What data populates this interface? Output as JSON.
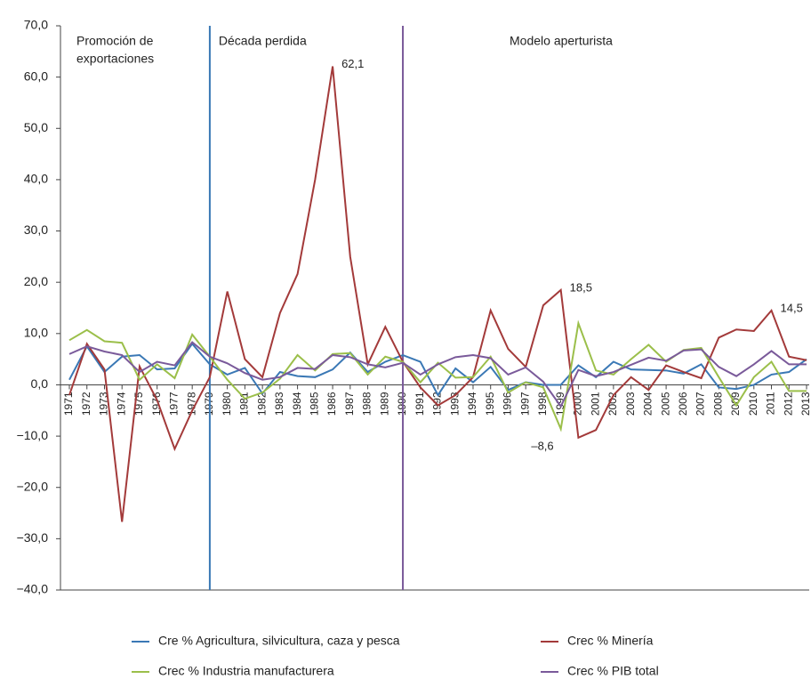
{
  "chart_data": {
    "type": "line",
    "categories": [
      "1971",
      "1972",
      "1973",
      "1974",
      "1975",
      "1976",
      "1977",
      "1978",
      "1979",
      "1980",
      "1981",
      "1982",
      "1983",
      "1984",
      "1985",
      "1986",
      "1987",
      "1988",
      "1989",
      "1990",
      "1991",
      "1992",
      "1993",
      "1994",
      "1995",
      "1996",
      "1997",
      "1998",
      "1999",
      "2000",
      "2001",
      "2002",
      "2003",
      "2004",
      "2005",
      "2006",
      "2007",
      "2008",
      "2009",
      "2010",
      "2011",
      "2012",
      "2013"
    ],
    "series": [
      {
        "name": "Cre % Agricultura, silvicultura, caza y pesca",
        "color": "#3a78b5",
        "values": [
          1,
          7.5,
          2.5,
          5.5,
          5.8,
          3,
          3.2,
          8,
          4,
          2,
          3.3,
          -1.7,
          2.5,
          1.7,
          1.5,
          3,
          6.3,
          2.5,
          4.5,
          5.8,
          4.5,
          -2,
          3.2,
          0.5,
          3.5,
          -1,
          0.5,
          0,
          0,
          3.8,
          1.5,
          4.5,
          3,
          2.9,
          2.8,
          2.2,
          4,
          -0.5,
          -0.8,
          0,
          2,
          2.5,
          5
        ]
      },
      {
        "name": "Crec % Minería",
        "color": "#a33a3a",
        "values": [
          -2,
          8,
          3,
          -26.7,
          3.6,
          -3,
          -12.5,
          -5,
          1.5,
          18.2,
          5,
          1.5,
          14,
          21.6,
          40,
          62.1,
          25,
          4,
          11.3,
          4.5,
          -0.5,
          -4,
          -2,
          1.5,
          14.5,
          7,
          3.5,
          15.5,
          18.5,
          -10.3,
          -8.8,
          -2,
          1.5,
          -1,
          3.8,
          2.5,
          1.3,
          9.2,
          10.8,
          10.5,
          14.5,
          5.5,
          4.8
        ],
        "value_labels": [
          null,
          null,
          null,
          null,
          null,
          null,
          null,
          null,
          null,
          null,
          null,
          null,
          null,
          null,
          null,
          "62,1",
          null,
          null,
          null,
          null,
          null,
          null,
          null,
          null,
          null,
          null,
          null,
          null,
          "18,5",
          null,
          null,
          null,
          null,
          null,
          null,
          null,
          null,
          null,
          null,
          null,
          "14,5",
          null,
          null
        ]
      },
      {
        "name": "Crec % Industria manufacturera",
        "color": "#9bbf4a",
        "values": [
          8.7,
          10.7,
          8.5,
          8.2,
          1,
          4,
          1.3,
          9.8,
          5.5,
          1,
          -2.7,
          -1.5,
          1.2,
          5.8,
          2.8,
          6,
          6.2,
          2,
          5.5,
          4.5,
          0.5,
          4.3,
          1.4,
          1.5,
          5.5,
          -1.5,
          0.5,
          -0.5,
          -8.6,
          12,
          2.8,
          2,
          5,
          7.8,
          4.5,
          6.8,
          7.2,
          1.5,
          -4,
          1.5,
          4.5,
          -1.2,
          -1.2
        ],
        "value_labels": [
          null,
          null,
          null,
          null,
          null,
          null,
          null,
          null,
          null,
          null,
          null,
          null,
          null,
          null,
          null,
          null,
          null,
          null,
          null,
          null,
          null,
          null,
          null,
          null,
          null,
          null,
          null,
          null,
          "–8,6",
          null,
          null,
          null,
          null,
          null,
          null,
          null,
          null,
          null,
          null,
          null,
          null,
          null,
          null
        ]
      },
      {
        "name": "Crec % PIB total",
        "color": "#7a5a9a",
        "values": [
          6,
          7.5,
          6.5,
          5.8,
          2.5,
          4.5,
          3.8,
          8.3,
          5.5,
          4.2,
          2.3,
          1,
          1.5,
          3.3,
          3.1,
          5.8,
          5.4,
          4,
          3.4,
          4.3,
          2,
          4,
          5.4,
          5.8,
          5.2,
          2,
          3.4,
          0.6,
          -4.2,
          2.9,
          1.7,
          2.5,
          3.9,
          5.3,
          4.7,
          6.7,
          6.9,
          3.5,
          1.7,
          4,
          6.6,
          4,
          4
        ]
      }
    ],
    "ylim": [
      -40,
      70
    ],
    "yticks": [
      {
        "value": -40,
        "label": "−40,0"
      },
      {
        "value": -30,
        "label": "−30,0"
      },
      {
        "value": -20,
        "label": "−20,0"
      },
      {
        "value": -10,
        "label": "−10,0"
      },
      {
        "value": 0,
        "label": "0,0"
      },
      {
        "value": 10,
        "label": "10,0"
      },
      {
        "value": 20,
        "label": "20,0"
      },
      {
        "value": 30,
        "label": "30,0"
      },
      {
        "value": 40,
        "label": "40,0"
      },
      {
        "value": 50,
        "label": "50,0"
      },
      {
        "value": 60,
        "label": "60,0"
      },
      {
        "value": 70,
        "label": "70,0"
      }
    ],
    "grid": false,
    "periods": [
      {
        "label": [
          "Promoción de",
          "exportaciones"
        ],
        "start": "1971"
      },
      {
        "label": [
          "Década perdida"
        ],
        "start": "1979",
        "divider_color": "#3a78b5"
      },
      {
        "label": [
          "Modelo aperturista"
        ],
        "start": "1990",
        "divider_color": "#7a5a9a"
      }
    ]
  }
}
